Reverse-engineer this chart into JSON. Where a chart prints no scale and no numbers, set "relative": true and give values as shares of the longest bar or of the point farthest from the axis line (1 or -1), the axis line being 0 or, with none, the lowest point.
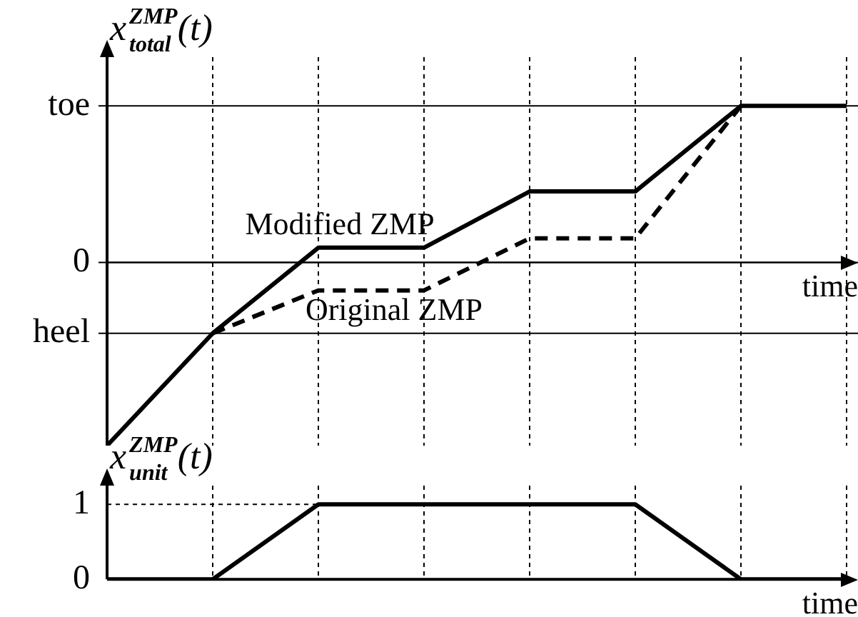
{
  "chart_data": [
    {
      "type": "line",
      "relative": true,
      "ylabel": "x$_{total}$$^{ZMP}$(t)",
      "xlabel": "time",
      "categories": [
        null,
        null,
        null,
        null,
        null,
        null,
        null,
        null
      ],
      "tick_labels": false,
      "grid": "x",
      "series": [
        {
          "name": "Modified ZMP",
          "color": "#000000",
          "line_style": "solid",
          "values": [
            -1,
            -0.387,
            0.08,
            0.08,
            0.387,
            0.387,
            0.854,
            0.854
          ]
        },
        {
          "name": "Original ZMP",
          "color": "#000000",
          "line_style": "dashed",
          "values": [
            null,
            -0.387,
            -0.153,
            -0.153,
            0.131,
            0.131,
            0.854,
            null
          ]
        }
      ],
      "ref_lines": [
        {
          "axis": "y",
          "value": 0.854,
          "label": "toe"
        },
        {
          "axis": "y",
          "value": 0,
          "label": "0"
        },
        {
          "axis": "y",
          "value": -0.387,
          "label": "heel"
        }
      ]
    },
    {
      "type": "line",
      "ylabel": "x$_{unit}$$^{ZMP}$(t)",
      "xlabel": "time",
      "categories": [
        null,
        null,
        null,
        null,
        null,
        null,
        null,
        null
      ],
      "ylim": [
        0,
        1.25
      ],
      "yticks": [
        0,
        1
      ],
      "tick_labels": "y",
      "grid": "x",
      "series": [
        {
          "color": "#000000",
          "line_style": "solid",
          "values": [
            0,
            0,
            1,
            1,
            1,
            1,
            0,
            0
          ]
        }
      ],
      "ref_lines": [
        {
          "axis": "y",
          "value": 1,
          "line_style": "dotted"
        }
      ]
    }
  ]
}
